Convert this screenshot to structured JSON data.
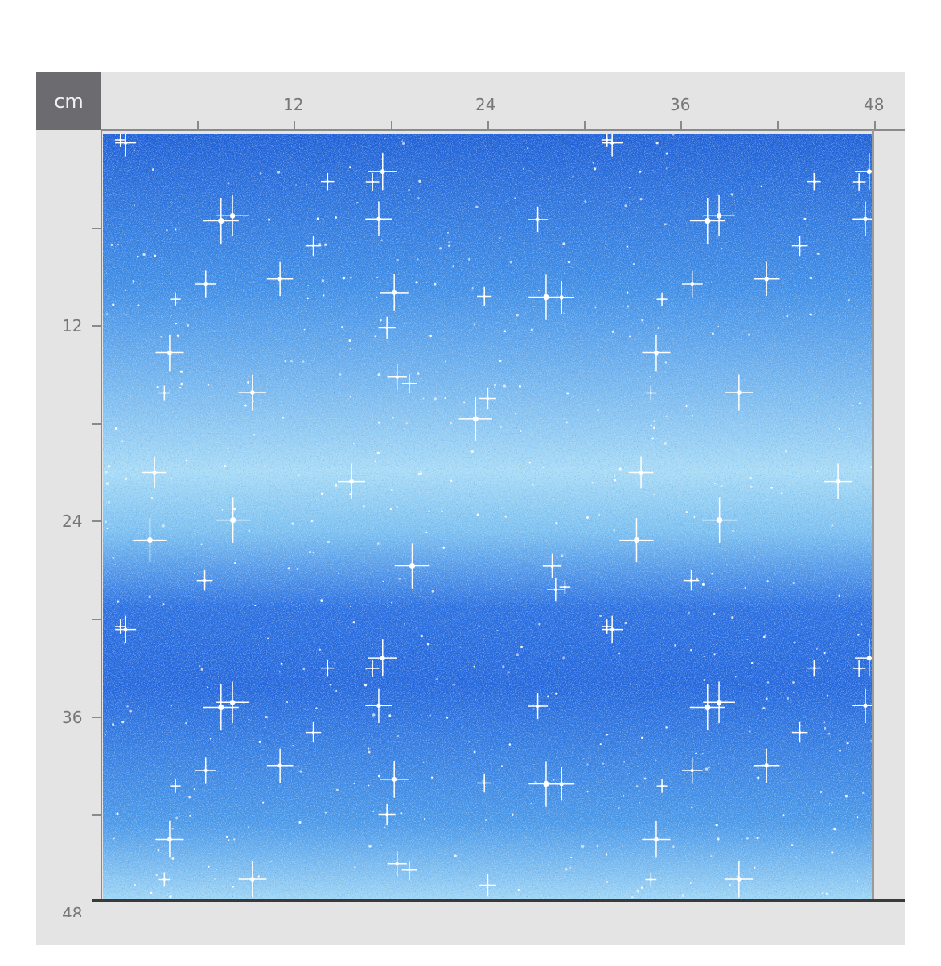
{
  "ruler": {
    "unit": "cm",
    "x_labels": [
      "12",
      "24",
      "36",
      "48"
    ],
    "y_labels": [
      "12",
      "24",
      "36",
      "48"
    ]
  },
  "fabric": {
    "pattern": "blue glitter sparkle gradient",
    "colors": {
      "dark": "#1f5fd6",
      "mid": "#3f8de6",
      "light": "#a9dcf6"
    }
  }
}
